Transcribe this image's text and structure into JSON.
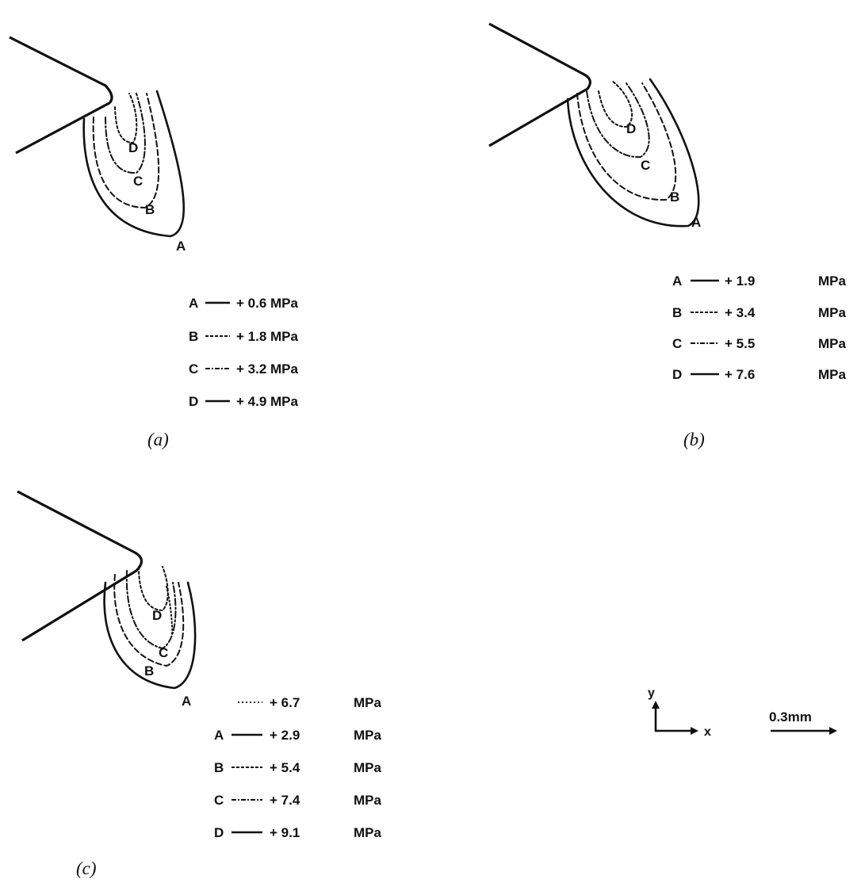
{
  "panels": {
    "a": {
      "caption": "(a)",
      "contours": [
        "A",
        "B",
        "C",
        "D"
      ],
      "legend": [
        {
          "label": "A",
          "value": "+ 0.6 MPa"
        },
        {
          "label": "B",
          "value": "+ 1.8 MPa"
        },
        {
          "label": "C",
          "value": "+ 3.2 MPa"
        },
        {
          "label": "D",
          "value": "+ 4.9 MPa"
        }
      ]
    },
    "b": {
      "caption": "(b)",
      "contours": [
        "A",
        "B",
        "C",
        "D"
      ],
      "legend": [
        {
          "label": "A",
          "value": "+ 1.9",
          "unit": "MPa"
        },
        {
          "label": "B",
          "value": "+ 3.4",
          "unit": "MPa"
        },
        {
          "label": "C",
          "value": "+ 5.5",
          "unit": "MPa"
        },
        {
          "label": "D",
          "value": "+ 7.6",
          "unit": "MPa"
        }
      ]
    },
    "c": {
      "caption": "(c)",
      "contours": [
        "A",
        "B",
        "C",
        "D"
      ],
      "legend": [
        {
          "label": "",
          "value": "+ 6.7",
          "unit": "MPa"
        },
        {
          "label": "A",
          "value": "+ 2.9",
          "unit": "MPa"
        },
        {
          "label": "B",
          "value": "+ 5.4",
          "unit": "MPa"
        },
        {
          "label": "C",
          "value": "+ 7.4",
          "unit": "MPa"
        },
        {
          "label": "D",
          "value": "+ 9.1",
          "unit": "MPa"
        }
      ]
    }
  },
  "axes": {
    "y_label": "y",
    "x_label": "x"
  },
  "scale_bar": {
    "label": "0.3mm"
  }
}
